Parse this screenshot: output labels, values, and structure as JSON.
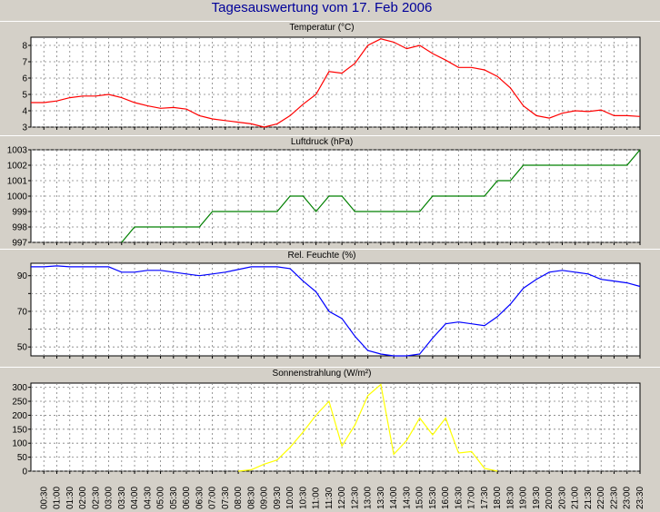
{
  "title": "Tagesauswertung vom 17. Feb 2006",
  "colors": {
    "background": "#d4d0c8",
    "plot_background": "#ffffff",
    "title": "#000099",
    "grid": "#808080"
  },
  "x_ticks": [
    "00:30",
    "01:00",
    "01:30",
    "02:00",
    "02:30",
    "03:00",
    "03:30",
    "04:00",
    "04:30",
    "05:00",
    "05:30",
    "06:00",
    "06:30",
    "07:00",
    "07:30",
    "08:00",
    "08:30",
    "09:00",
    "09:30",
    "10:00",
    "10:30",
    "11:00",
    "11:30",
    "12:00",
    "12:30",
    "13:00",
    "13:30",
    "14:00",
    "14:30",
    "15:00",
    "15:30",
    "16:00",
    "16:30",
    "17:00",
    "17:30",
    "18:00",
    "18:30",
    "19:00",
    "19:30",
    "20:00",
    "20:30",
    "21:00",
    "21:30",
    "22:00",
    "22:30",
    "23:00",
    "23:30"
  ],
  "chart_data": [
    {
      "type": "line",
      "title": "Temperatur (°C)",
      "ylim": [
        3,
        8.5
      ],
      "yticks": [
        3,
        4,
        5,
        6,
        7,
        8
      ],
      "grid": true,
      "color": "#ff0000",
      "x": [
        "00:00",
        "00:30",
        "01:00",
        "01:30",
        "02:00",
        "02:30",
        "03:00",
        "03:30",
        "04:00",
        "04:30",
        "05:00",
        "05:30",
        "06:00",
        "06:30",
        "07:00",
        "07:30",
        "08:00",
        "08:30",
        "09:00",
        "09:30",
        "10:00",
        "10:30",
        "11:00",
        "11:30",
        "12:00",
        "12:30",
        "13:00",
        "13:30",
        "14:00",
        "14:30",
        "15:00",
        "15:30",
        "16:00",
        "16:30",
        "17:00",
        "17:30",
        "18:00",
        "18:30",
        "19:00",
        "19:30",
        "20:00",
        "20:30",
        "21:00",
        "21:30",
        "22:00",
        "22:30",
        "23:00",
        "23:30"
      ],
      "values": [
        4.5,
        4.5,
        4.6,
        4.8,
        4.9,
        4.9,
        5.0,
        4.8,
        4.5,
        4.3,
        4.15,
        4.2,
        4.1,
        3.7,
        3.5,
        3.4,
        3.3,
        3.2,
        3.0,
        3.2,
        3.7,
        4.4,
        5.0,
        6.4,
        6.3,
        6.9,
        8.0,
        8.4,
        8.2,
        7.8,
        8.0,
        7.5,
        7.1,
        6.65,
        6.65,
        6.5,
        6.1,
        5.4,
        4.3,
        3.7,
        3.55,
        3.85,
        4.0,
        3.95,
        4.05,
        3.7,
        3.7,
        3.65
      ]
    },
    {
      "type": "line",
      "title": "Luftdruck (hPa)",
      "ylim": [
        997,
        1003
      ],
      "yticks": [
        997,
        998,
        999,
        1000,
        1001,
        1002,
        1003
      ],
      "grid": true,
      "color": "#008000",
      "x": [
        "03:30",
        "04:00",
        "04:30",
        "05:00",
        "05:30",
        "06:00",
        "06:30",
        "07:00",
        "07:30",
        "08:00",
        "08:30",
        "09:00",
        "09:30",
        "10:00",
        "10:30",
        "11:00",
        "11:30",
        "12:00",
        "12:30",
        "13:00",
        "13:30",
        "14:00",
        "14:30",
        "15:00",
        "15:30",
        "16:00",
        "16:30",
        "17:00",
        "17:30",
        "18:00",
        "18:30",
        "19:00",
        "19:30",
        "20:00",
        "20:30",
        "21:00",
        "21:30",
        "22:00",
        "22:30",
        "23:00",
        "23:30"
      ],
      "values": [
        997,
        998,
        998,
        998,
        998,
        998,
        998,
        999,
        999,
        999,
        999,
        999,
        999,
        1000,
        1000,
        999,
        1000,
        1000,
        999,
        999,
        999,
        999,
        999,
        999,
        1000,
        1000,
        1000,
        1000,
        1000,
        1001,
        1001,
        1002,
        1002,
        1002,
        1002,
        1002,
        1002,
        1002,
        1002,
        1002,
        1003
      ]
    },
    {
      "type": "line",
      "title": "Rel. Feuchte (%)",
      "ylim": [
        45,
        97
      ],
      "yticks": [
        50,
        60,
        70,
        80,
        90
      ],
      "ytick_labels": [
        "50",
        "",
        "70",
        "",
        "90"
      ],
      "grid": true,
      "color": "#0000ff",
      "x": [
        "00:00",
        "00:30",
        "01:00",
        "01:30",
        "02:00",
        "02:30",
        "03:00",
        "03:30",
        "04:00",
        "04:30",
        "05:00",
        "05:30",
        "06:00",
        "06:30",
        "07:00",
        "07:30",
        "08:00",
        "08:30",
        "09:00",
        "09:30",
        "10:00",
        "10:30",
        "11:00",
        "11:30",
        "12:00",
        "12:30",
        "13:00",
        "13:30",
        "14:00",
        "14:30",
        "15:00",
        "15:30",
        "16:00",
        "16:30",
        "17:00",
        "17:30",
        "18:00",
        "18:30",
        "19:00",
        "19:30",
        "20:00",
        "20:30",
        "21:00",
        "21:30",
        "22:00",
        "22:30",
        "23:00",
        "23:30"
      ],
      "values": [
        95,
        95,
        95.5,
        95,
        95,
        95,
        95,
        92,
        92,
        93,
        93,
        92,
        91,
        90,
        91,
        92,
        93.5,
        95,
        95,
        95,
        94,
        87,
        81,
        70,
        66,
        56,
        48,
        46,
        45,
        45,
        46,
        55,
        63,
        64,
        63,
        62,
        67,
        74,
        83,
        88,
        92,
        93,
        92,
        91,
        88,
        87,
        86,
        84
      ]
    },
    {
      "type": "line",
      "title": "Sonnenstrahlung (W/m²)",
      "ylim": [
        0,
        315
      ],
      "yticks": [
        0,
        50,
        100,
        150,
        200,
        250,
        300
      ],
      "grid": true,
      "color": "#ffff00",
      "x": [
        "08:00",
        "08:30",
        "09:00",
        "09:30",
        "10:00",
        "10:30",
        "11:00",
        "11:30",
        "12:00",
        "12:30",
        "13:00",
        "13:30",
        "14:00",
        "14:30",
        "15:00",
        "15:30",
        "16:00",
        "16:30",
        "17:00",
        "17:30",
        "18:00"
      ],
      "values": [
        0,
        5,
        25,
        40,
        85,
        140,
        200,
        250,
        90,
        165,
        270,
        310,
        60,
        110,
        190,
        130,
        190,
        65,
        70,
        10,
        0
      ]
    }
  ]
}
